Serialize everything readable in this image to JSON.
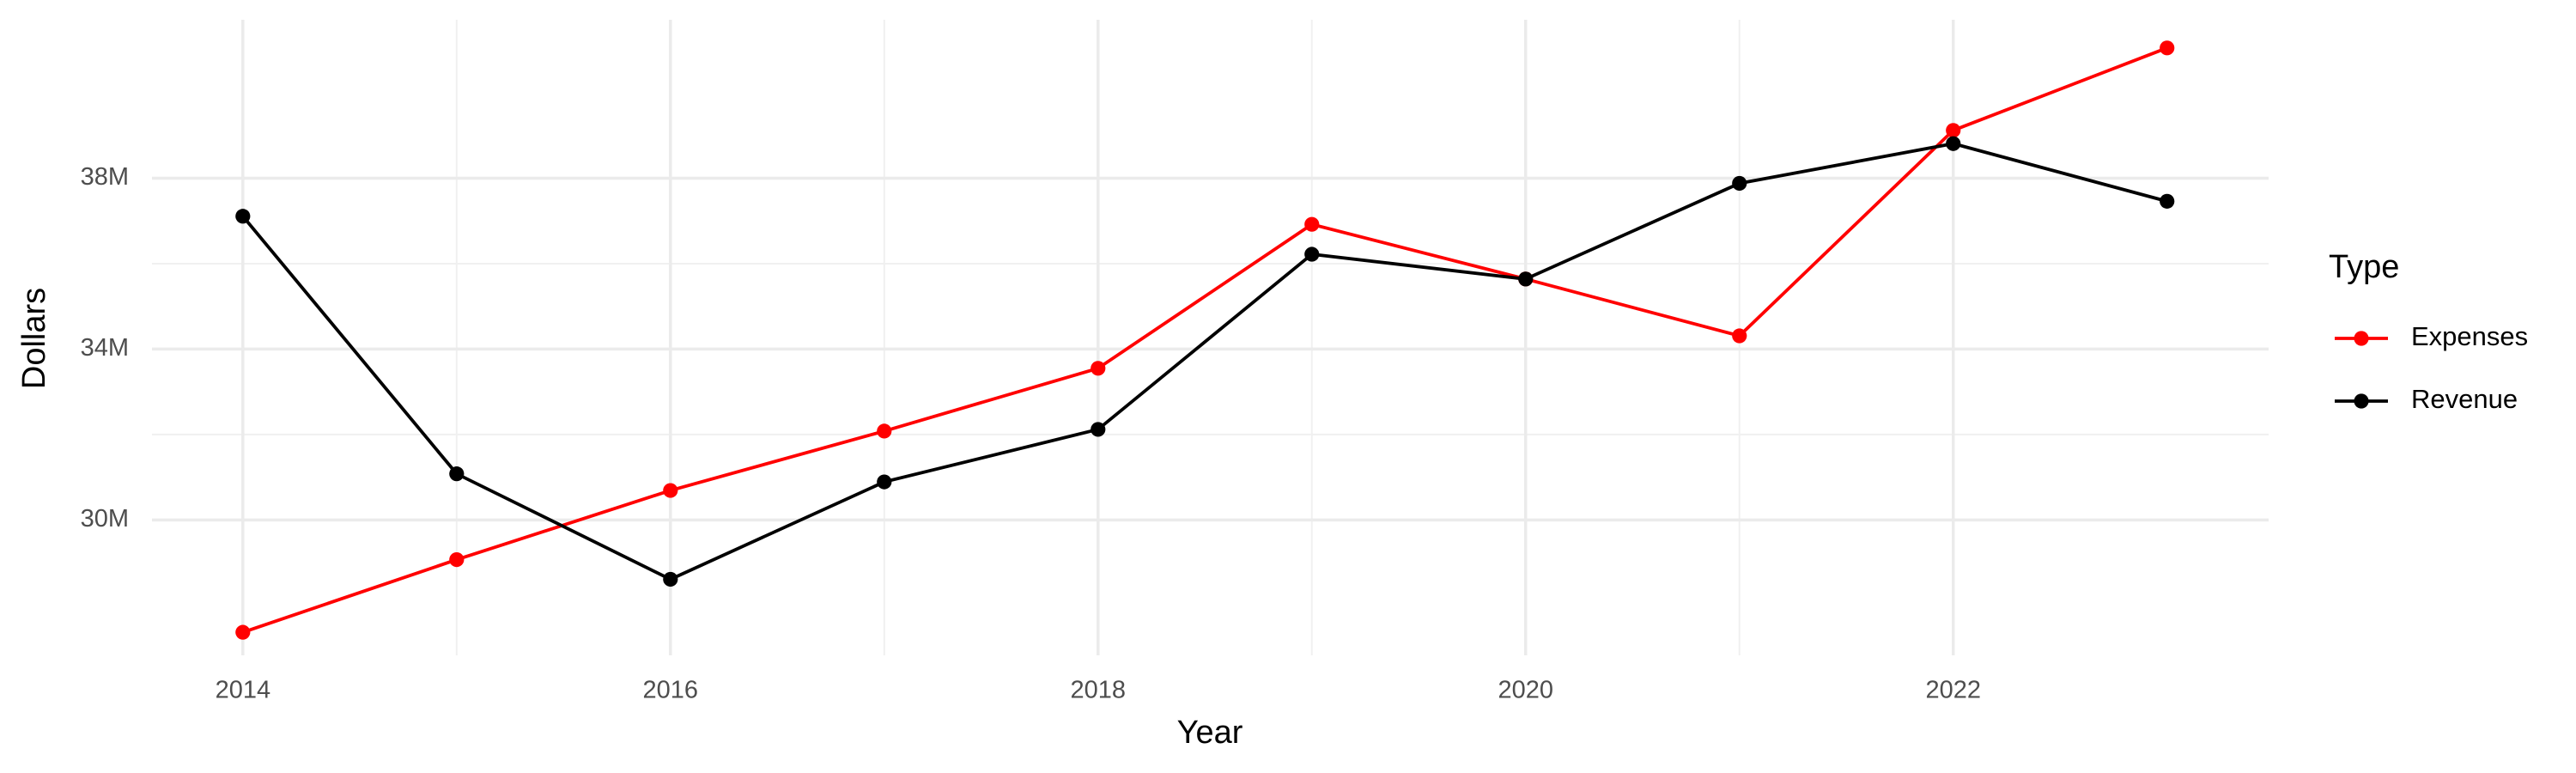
{
  "chart_data": {
    "type": "line",
    "x_label": "Year",
    "y_label": "Dollars",
    "legend_title": "Type",
    "legend_position": "right",
    "x": [
      2014,
      2015,
      2016,
      2017,
      2018,
      2019,
      2020,
      2021,
      2022,
      2023
    ],
    "series": [
      {
        "name": "Expenses",
        "color": "#ff0000",
        "values": [
          27370000,
          29070000,
          30690000,
          32080000,
          33550000,
          36920000,
          35640000,
          34310000,
          39120000,
          41050000
        ]
      },
      {
        "name": "Revenue",
        "color": "#000000",
        "values": [
          37110000,
          31080000,
          28610000,
          30890000,
          32120000,
          36220000,
          35640000,
          37880000,
          38810000,
          37460000
        ]
      }
    ],
    "xlim": [
      2013.575,
      2023.475
    ],
    "xticks": [
      2014,
      2016,
      2018,
      2020,
      2022
    ],
    "ylim": [
      26830000,
      41710000
    ],
    "yticks": [
      {
        "value": 30000000,
        "label": "30M"
      },
      {
        "value": 34000000,
        "label": "34M"
      },
      {
        "value": 38000000,
        "label": "38M"
      }
    ],
    "grid": true
  }
}
